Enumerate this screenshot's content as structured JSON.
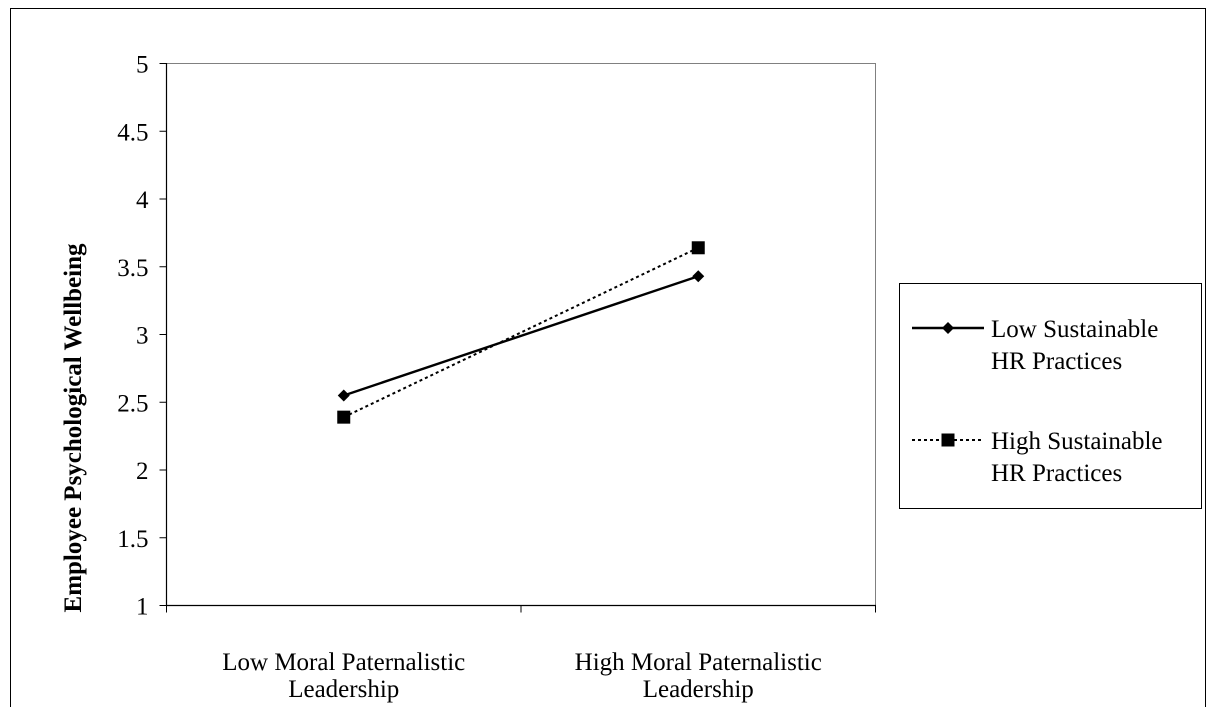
{
  "chart_data": {
    "type": "line",
    "categories": [
      [
        "Low Moral Paternalistic",
        "Leadership"
      ],
      [
        "High Moral Paternalistic",
        "Leadership"
      ]
    ],
    "series": [
      {
        "name": [
          "Low Sustainable",
          "HR Practices"
        ],
        "values": [
          2.55,
          3.43
        ],
        "line_style": "solid",
        "marker": "diamond",
        "color": "#000000"
      },
      {
        "name": [
          "High Sustainable",
          "HR Practices"
        ],
        "values": [
          2.39,
          3.64
        ],
        "line_style": "dotted",
        "marker": "square",
        "color": "#000000"
      }
    ],
    "ylabel": "Employee Psychological Wellbeing",
    "xlabel": "",
    "title": "",
    "ylim": [
      1,
      5
    ],
    "yticks": [
      "1",
      "1.5",
      "2",
      "2.5",
      "3",
      "3.5",
      "4",
      "4.5",
      "5"
    ],
    "grid": false,
    "legend_position": "right"
  }
}
